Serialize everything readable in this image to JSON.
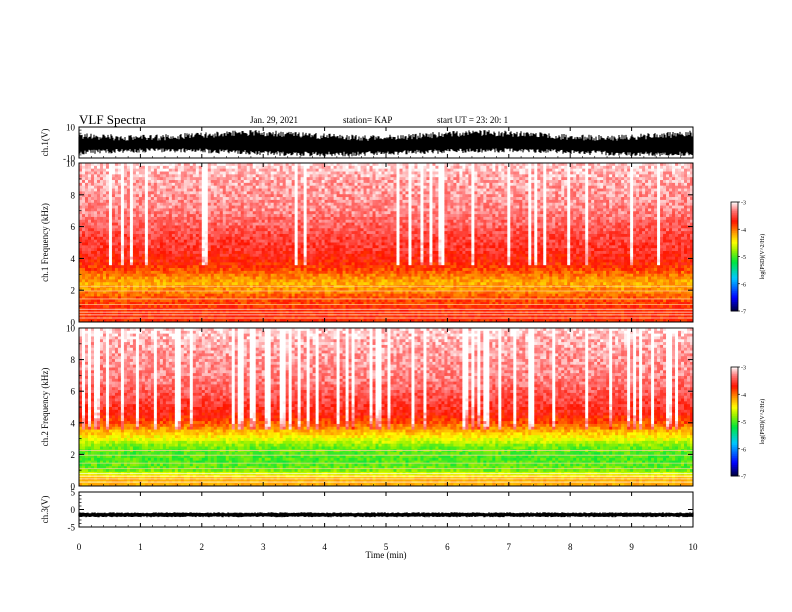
{
  "header": {
    "title": "VLF Spectra",
    "date": "Jan. 29, 2021",
    "station": "station= KAP",
    "start_ut": "start UT =  23: 20: 1"
  },
  "colorbar": {
    "label": "log(PSD)(V^2/Hz)",
    "ticks": [
      "-3",
      "-4",
      "-5",
      "-6",
      "-7"
    ]
  },
  "chart_data": [
    {
      "type": "line",
      "panel": "ch.1 waveform",
      "ylabel": "ch.1(V)",
      "ylim": [
        -10,
        10
      ],
      "yticks": [
        "10",
        "-10"
      ],
      "xlim": [
        0,
        10
      ],
      "description_values": {
        "envelope_max": 8,
        "envelope_min": -9
      }
    },
    {
      "type": "heatmap",
      "panel": "ch.1 spectrogram",
      "ylabel": "ch.1 Frequency (kHz)",
      "ylim": [
        0,
        10
      ],
      "yticks": [
        "0",
        "2",
        "4",
        "6",
        "8",
        "10"
      ],
      "xlim": [
        0,
        10
      ],
      "zlim": [
        -7,
        -3
      ],
      "band_profile": [
        {
          "freq_khz": 0.5,
          "log_psd": -3.8
        },
        {
          "freq_khz": 1.0,
          "log_psd": -3.8
        },
        {
          "freq_khz": 1.5,
          "log_psd": -3.9
        },
        {
          "freq_khz": 2.0,
          "log_psd": -4.1
        },
        {
          "freq_khz": 2.5,
          "log_psd": -4.2
        },
        {
          "freq_khz": 3.0,
          "log_psd": -4.0
        },
        {
          "freq_khz": 3.5,
          "log_psd": -3.8
        },
        {
          "freq_khz": 4.0,
          "log_psd": -3.7
        },
        {
          "freq_khz": 4.5,
          "log_psd": -3.6
        },
        {
          "freq_khz": 5.5,
          "log_psd": -3.5
        },
        {
          "freq_khz": 7.0,
          "log_psd": -3.3
        },
        {
          "freq_khz": 9.0,
          "log_psd": -3.2
        },
        {
          "freq_khz": 10.0,
          "log_psd": -3.1
        }
      ]
    },
    {
      "type": "heatmap",
      "panel": "ch.2 spectrogram",
      "ylabel": "ch.2 Frequency (kHz)",
      "ylim": [
        0,
        10
      ],
      "yticks": [
        "0",
        "2",
        "4",
        "6",
        "8",
        "10"
      ],
      "xlim": [
        0,
        10
      ],
      "zlim": [
        -7,
        -3
      ],
      "band_profile": [
        {
          "freq_khz": 0.5,
          "log_psd": -4.2
        },
        {
          "freq_khz": 1.0,
          "log_psd": -4.9
        },
        {
          "freq_khz": 1.5,
          "log_psd": -5.0
        },
        {
          "freq_khz": 2.0,
          "log_psd": -5.0
        },
        {
          "freq_khz": 2.5,
          "log_psd": -4.9
        },
        {
          "freq_khz": 3.0,
          "log_psd": -4.5
        },
        {
          "freq_khz": 3.5,
          "log_psd": -4.2
        },
        {
          "freq_khz": 4.0,
          "log_psd": -3.9
        },
        {
          "freq_khz": 4.5,
          "log_psd": -3.7
        },
        {
          "freq_khz": 5.5,
          "log_psd": -3.5
        },
        {
          "freq_khz": 7.0,
          "log_psd": -3.3
        },
        {
          "freq_khz": 9.0,
          "log_psd": -3.2
        },
        {
          "freq_khz": 10.0,
          "log_psd": -3.1
        }
      ]
    },
    {
      "type": "line",
      "panel": "ch.3 waveform",
      "ylabel": "ch.3(V)",
      "ylim": [
        -5,
        5
      ],
      "yticks": [
        "5",
        "0",
        "-5"
      ],
      "xlim": [
        0,
        10
      ],
      "xlabel": "Time (min)",
      "xticks": [
        "0",
        "1",
        "2",
        "3",
        "4",
        "5",
        "6",
        "7",
        "8",
        "9",
        "10"
      ],
      "description_values": {
        "envelope_max": -0.8,
        "envelope_min": -2.2
      }
    }
  ]
}
